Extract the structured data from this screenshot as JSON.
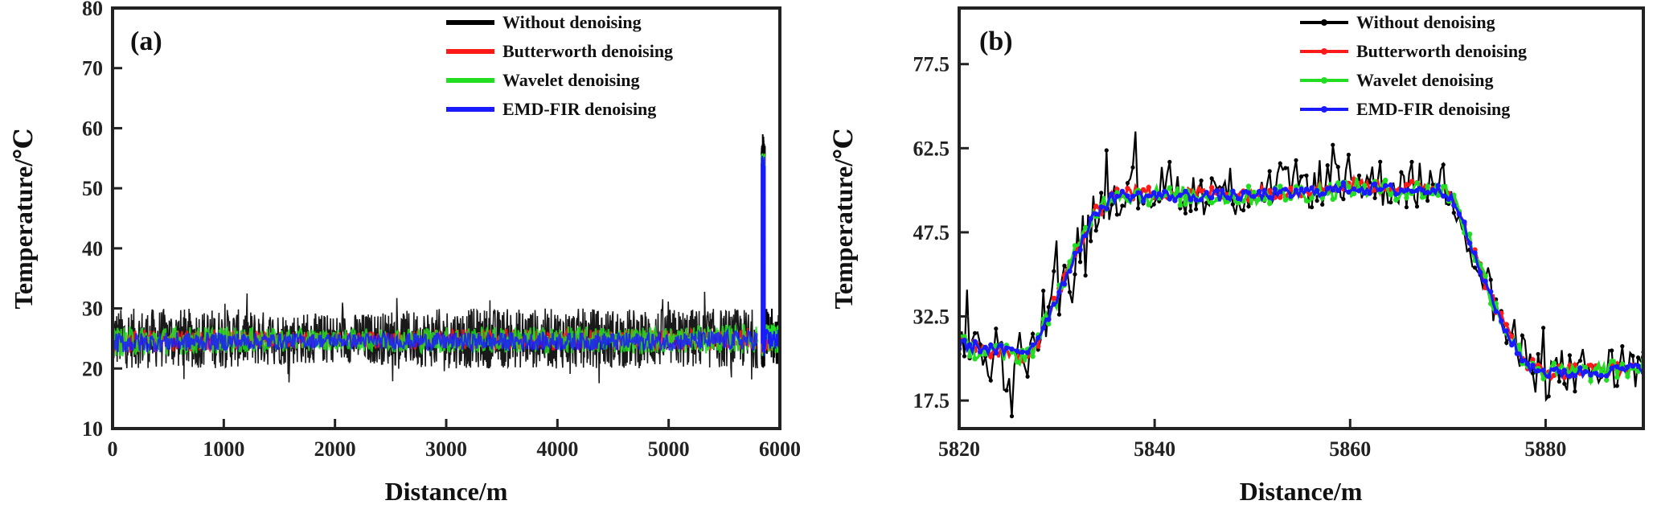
{
  "colors": {
    "without": "#000000",
    "butterworth": "#ff1a1a",
    "wavelet": "#22dd22",
    "emd": "#1a1aff"
  },
  "chart_data": [
    {
      "type": "line",
      "panel_label": "(a)",
      "xlabel": "Distance/m",
      "ylabel": "Temperature/℃",
      "xlim": [
        0,
        6000
      ],
      "ylim": [
        10,
        80
      ],
      "xticks": [
        0,
        1000,
        2000,
        3000,
        4000,
        5000,
        6000
      ],
      "yticks": [
        10,
        20,
        30,
        40,
        50,
        60,
        70,
        80
      ],
      "legend_position": "top-right",
      "series": [
        {
          "name": "Without denoising",
          "color_key": "without",
          "band": {
            "x": [
              0,
              1000,
              2000,
              3000,
              4000,
              5000,
              5800
            ],
            "low": [
              20,
              20,
              21,
              20,
              20,
              20,
              20
            ],
            "high": [
              30,
              30,
              29,
              30,
              30,
              30,
              30
            ]
          },
          "spike": {
            "x": 5850,
            "low": 20,
            "high": 59
          }
        },
        {
          "name": "Butterworth denoising",
          "color_key": "butterworth",
          "band": {
            "x": [
              0,
              1000,
              2000,
              3000,
              4000,
              5000,
              5800
            ],
            "low": [
              22.5,
              23,
              23.5,
              23,
              23,
              23,
              23
            ],
            "high": [
              26.5,
              26.5,
              26,
              26.5,
              26.5,
              26.5,
              27
            ]
          },
          "spike": {
            "x": 5850,
            "low": 22,
            "high": 56
          }
        },
        {
          "name": "Wavelet  denoising",
          "color_key": "wavelet",
          "band": {
            "x": [
              0,
              1000,
              2000,
              3000,
              4000,
              5000,
              5800
            ],
            "low": [
              22,
              22.5,
              23,
              22.5,
              22.5,
              22.5,
              22.5
            ],
            "high": [
              27,
              27,
              26.5,
              27,
              27,
              27,
              27.5
            ]
          },
          "spike": {
            "x": 5850,
            "low": 22,
            "high": 56
          }
        },
        {
          "name": "EMD-FIR denoising",
          "color_key": "emd",
          "band": {
            "x": [
              0,
              1000,
              2000,
              3000,
              4000,
              5000,
              5800
            ],
            "low": [
              22.5,
              23,
              23.5,
              23,
              23,
              23,
              23
            ],
            "high": [
              26,
              26,
              25.8,
              26,
              26,
              26,
              26.5
            ]
          },
          "spike": {
            "x": 5850,
            "low": 22,
            "high": 56
          }
        }
      ]
    },
    {
      "type": "line",
      "panel_label": "(b)",
      "xlabel": "Distance/m",
      "ylabel": "Temperature/℃",
      "xlim": [
        5820,
        5890
      ],
      "ylim": [
        12.5,
        87.5
      ],
      "xticks": [
        5820,
        5840,
        5860,
        5880
      ],
      "yticks": [
        17.5,
        32.5,
        47.5,
        62.5,
        77.5
      ],
      "legend_position": "top-right",
      "series": [
        {
          "name": "Without denoising",
          "color_key": "without",
          "x": [
            5820,
            5822,
            5824,
            5826,
            5827,
            5828,
            5830,
            5832,
            5834,
            5836,
            5840,
            5845,
            5850,
            5855,
            5860,
            5865,
            5869,
            5870,
            5871,
            5872,
            5874,
            5876,
            5878,
            5880,
            5884,
            5888,
            5890
          ],
          "y": [
            28,
            26,
            24,
            23,
            26,
            28,
            36,
            44,
            52,
            55,
            55,
            55,
            55,
            56,
            57,
            56,
            56,
            55,
            53,
            47,
            38,
            30,
            24,
            22,
            23,
            23,
            24
          ]
        },
        {
          "name": "Butterworth denoising",
          "color_key": "butterworth",
          "x": [
            5820,
            5822,
            5824,
            5826,
            5827,
            5828,
            5830,
            5832,
            5834,
            5836,
            5840,
            5845,
            5850,
            5855,
            5860,
            5865,
            5869,
            5870,
            5871,
            5872,
            5874,
            5876,
            5878,
            5880,
            5884,
            5888,
            5890
          ],
          "y": [
            28,
            27,
            26,
            25.5,
            26,
            28,
            36,
            44,
            51,
            54.5,
            54.5,
            54.5,
            54.5,
            55,
            56,
            55.5,
            55.5,
            55,
            53,
            47,
            38,
            30,
            24.5,
            22.5,
            23,
            23,
            24
          ]
        },
        {
          "name": "Wavelet  denoising",
          "color_key": "wavelet",
          "x": [
            5820,
            5822,
            5824,
            5826,
            5827,
            5828,
            5830,
            5832,
            5834,
            5836,
            5840,
            5845,
            5850,
            5855,
            5860,
            5865,
            5869,
            5870,
            5871,
            5872,
            5874,
            5876,
            5878,
            5880,
            5884,
            5888,
            5890
          ],
          "y": [
            27.5,
            26.5,
            26,
            25.5,
            26,
            28,
            36,
            44,
            51.5,
            54.5,
            54,
            54,
            54,
            54.5,
            55.5,
            55,
            55,
            54.5,
            52.5,
            47,
            38,
            30,
            24.5,
            22.5,
            22.5,
            23,
            23.5
          ]
        },
        {
          "name": "EMD-FIR denoising",
          "color_key": "emd",
          "x": [
            5820,
            5822,
            5824,
            5826,
            5827,
            5828,
            5830,
            5832,
            5834,
            5836,
            5840,
            5845,
            5850,
            5855,
            5860,
            5865,
            5869,
            5870,
            5871,
            5872,
            5874,
            5876,
            5878,
            5880,
            5884,
            5888,
            5890
          ],
          "y": [
            27.5,
            27,
            26.5,
            26,
            26.5,
            28.5,
            36,
            44,
            51,
            54,
            54,
            54,
            54,
            54.5,
            55.5,
            55,
            55,
            54.5,
            52.5,
            46.5,
            37.5,
            29.5,
            24,
            22.5,
            22.5,
            23,
            23.5
          ]
        }
      ]
    }
  ]
}
